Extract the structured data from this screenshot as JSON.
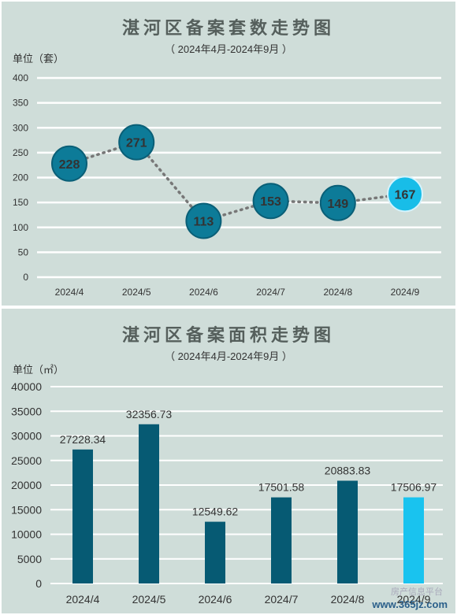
{
  "charts": [
    {
      "title": "湛河区备案套数走势图",
      "subtitle": "（ 2024年4月-2024年9月 ）",
      "unit": "单位（套）"
    },
    {
      "title": "湛河区备案面积走势图",
      "subtitle": "（ 2024年4月-2024年9月 ）",
      "unit": "单位（㎡）"
    }
  ],
  "chart_data": [
    {
      "type": "line",
      "categories": [
        "2024/4",
        "2024/5",
        "2024/6",
        "2024/7",
        "2024/8",
        "2024/9"
      ],
      "values": [
        228,
        271,
        113,
        153,
        149,
        167
      ],
      "labels": [
        "228",
        "271",
        "113",
        "153",
        "149",
        "167"
      ],
      "ylim": [
        0,
        400
      ],
      "yticks": [
        0,
        50,
        100,
        150,
        200,
        250,
        300,
        350,
        400
      ],
      "grid": true,
      "colors": {
        "marker": "#0d7b98",
        "highlight": "#18bde8",
        "line": "#777777",
        "grid": "#ffffff"
      }
    },
    {
      "type": "bar",
      "categories": [
        "2024/4",
        "2024/5",
        "2024/6",
        "2024/7",
        "2024/8",
        "2024/9"
      ],
      "values": [
        27228.34,
        32356.73,
        12549.62,
        17501.58,
        20883.83,
        17506.97
      ],
      "labels": [
        "27228.34",
        "32356.73",
        "12549.62",
        "17501.58",
        "20883.83",
        "17506.97"
      ],
      "ylim": [
        0,
        40000
      ],
      "yticks": [
        0,
        5000,
        10000,
        15000,
        20000,
        25000,
        30000,
        35000,
        40000
      ],
      "grid": true,
      "colors": {
        "bar": "#065a73",
        "highlight": "#19c3ef",
        "grid": "#ffffff"
      }
    }
  ],
  "watermark": "www.365jz.com",
  "watermark_faint": "房产信息平台"
}
